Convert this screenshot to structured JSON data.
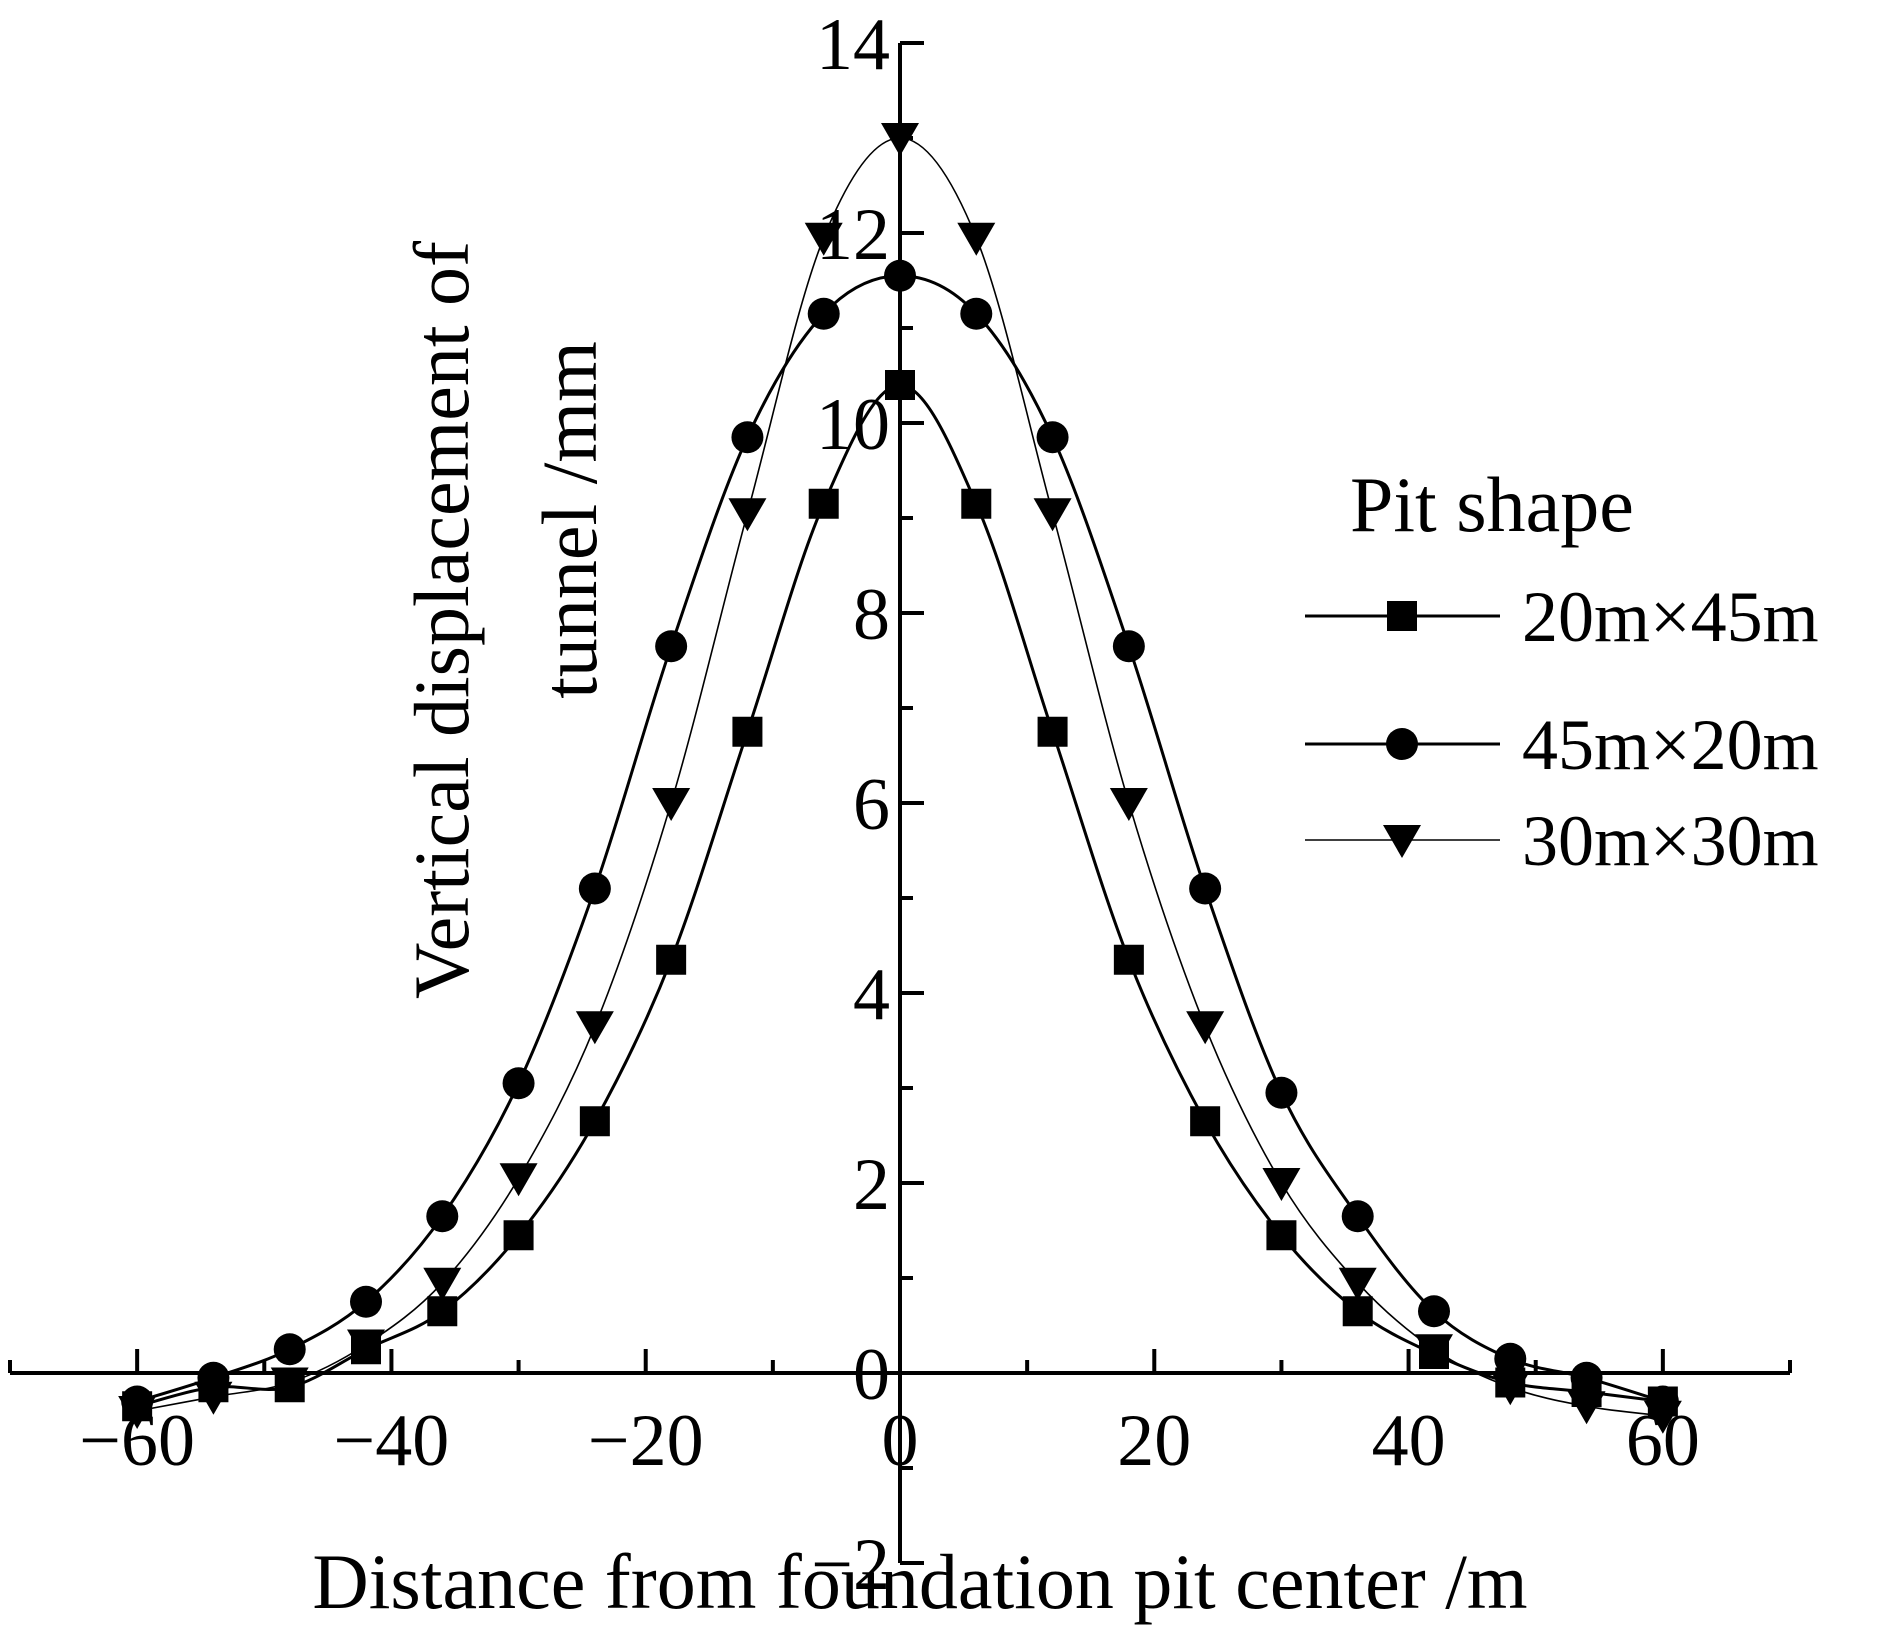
{
  "chart_data": {
    "type": "line",
    "title": "",
    "xlabel": "Distance from foundation pit center /m",
    "ylabel_line1": "Vertical displacement of",
    "ylabel_line2": "tunnel /mm",
    "xlim": [
      -70,
      70
    ],
    "ylim": [
      -2,
      14
    ],
    "x_major_ticks": [
      -60,
      -40,
      -20,
      0,
      20,
      40,
      60
    ],
    "x_tick_labels": [
      "−60",
      "−40",
      "−20",
      "0",
      "20",
      "40",
      "60"
    ],
    "y_major_ticks": [
      -2,
      0,
      2,
      4,
      6,
      8,
      10,
      12,
      14
    ],
    "y_tick_labels": [
      "−2",
      "0",
      "2",
      "4",
      "6",
      "8",
      "10",
      "12",
      "14"
    ],
    "legend_title": "Pit shape",
    "legend_position": "right",
    "x": [
      -60,
      -54,
      -48,
      -42,
      -36,
      -30,
      -24,
      -18,
      -12,
      -6,
      0,
      6,
      12,
      18,
      24,
      30,
      36,
      42,
      48,
      54,
      60
    ],
    "series": [
      {
        "name": "20m×45m",
        "marker": "square",
        "values": [
          -0.35,
          -0.15,
          -0.15,
          0.25,
          0.65,
          1.45,
          2.65,
          4.35,
          6.75,
          9.15,
          10.4,
          9.15,
          6.75,
          4.35,
          2.65,
          1.45,
          0.65,
          0.2,
          -0.1,
          -0.2,
          -0.3
        ]
      },
      {
        "name": "45m×20m",
        "marker": "circle",
        "values": [
          -0.3,
          -0.05,
          0.25,
          0.75,
          1.65,
          3.05,
          5.1,
          7.65,
          9.85,
          11.15,
          11.55,
          11.15,
          9.85,
          7.65,
          5.1,
          2.95,
          1.65,
          0.65,
          0.15,
          -0.05,
          -0.3
        ]
      },
      {
        "name": "30m×30m",
        "marker": "triangle-down",
        "values": [
          -0.4,
          -0.25,
          -0.1,
          0.3,
          0.95,
          2.05,
          3.65,
          6.0,
          9.05,
          11.95,
          13.0,
          11.95,
          9.05,
          6.0,
          3.65,
          2.0,
          0.95,
          0.25,
          -0.15,
          -0.35,
          -0.45
        ]
      }
    ]
  }
}
